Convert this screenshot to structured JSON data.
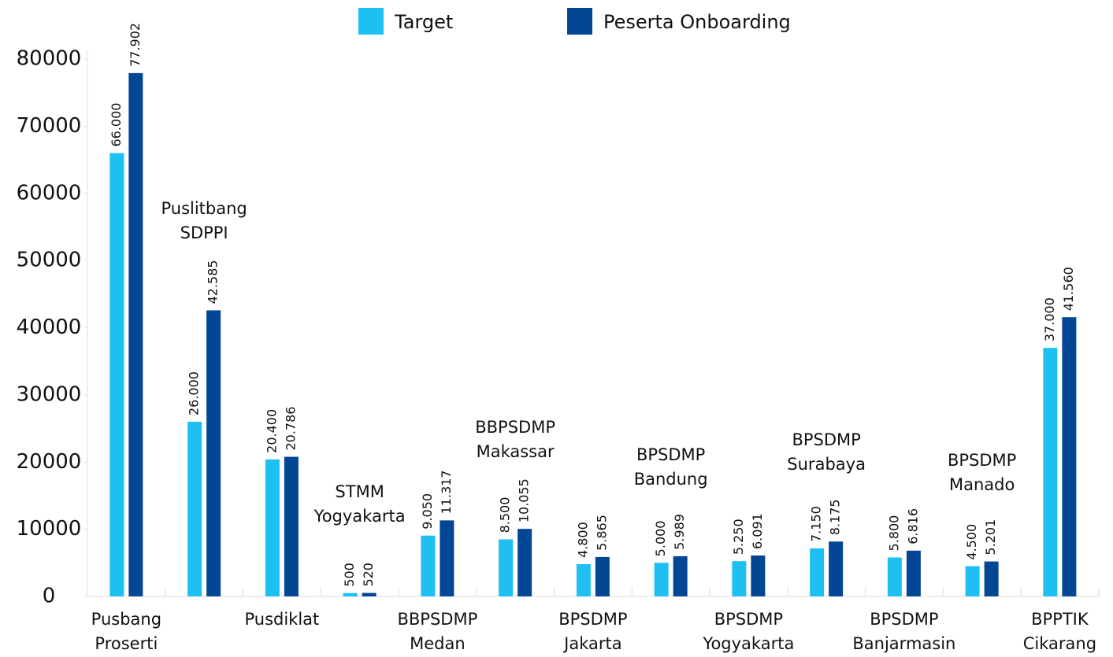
{
  "chart_data": {
    "type": "bar",
    "categories": [
      "Pusbang\nProserti",
      "Puslitbang\nSDPPI",
      "Pusdiklat",
      "STMM\nYogyakarta",
      "BBPSDMP\nMedan",
      "BBPSDMP\nMakassar",
      "BPSDMP\nJakarta",
      "BPSDMP\nBandung",
      "BPSDMP\nYogyakarta",
      "BPSDMP\nSurabaya",
      "BPSDMP\nBanjarmasin",
      "BPSDMP\nManado",
      "BPPTIK\nCikarang"
    ],
    "series": [
      {
        "name": "Target",
        "color": "#1ec0f2",
        "values": [
          66000,
          26000,
          20400,
          500,
          9050,
          8500,
          4800,
          5000,
          5250,
          7150,
          5800,
          4500,
          37000
        ],
        "value_labels": [
          "66.000",
          "26.000",
          "20.400",
          "500",
          "9.050",
          "8.500",
          "4.800",
          "5.000",
          "5.250",
          "7.150",
          "5.800",
          "4.500",
          "37.000"
        ]
      },
      {
        "name": "Peserta Onboarding",
        "color": "#034694",
        "values": [
          77902,
          42585,
          20786,
          520,
          11317,
          10055,
          5865,
          5989,
          6091,
          8175,
          6816,
          5201,
          41560
        ],
        "value_labels": [
          "77.902",
          "42.585",
          "20.786",
          "520",
          "11.317",
          "10.055",
          "5.865",
          "5.989",
          "6.091",
          "8.175",
          "6.816",
          "5.201",
          "41.560"
        ]
      }
    ],
    "ylim": [
      0,
      80000
    ],
    "yticks": [
      0,
      10000,
      20000,
      30000,
      40000,
      50000,
      60000,
      70000,
      80000
    ],
    "legend": "top",
    "grid": false
  }
}
